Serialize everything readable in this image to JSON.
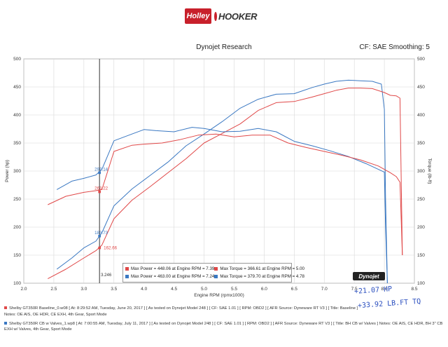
{
  "header": {
    "logo_holley": "Holley",
    "logo_hooker": "HOOKER",
    "title": "Dynojet Research",
    "cf_label": "CF: SAE Smoothing: 5"
  },
  "colors": {
    "red": "#e04848",
    "blue": "#3a78c2",
    "annotation": "#2b4fbf"
  },
  "chart_data": {
    "type": "line",
    "xlabel": "Engine RPM (rpmx1000)",
    "ylabel_left": "Power (hp)",
    "ylabel_right": "Torque (lb-ft)",
    "xlim": [
      2.0,
      8.5
    ],
    "ylim": [
      100,
      500
    ],
    "xticks": [
      "2.0",
      "2.5",
      "3.0",
      "3.5",
      "4.0",
      "4.5",
      "5.0",
      "5.5",
      "6.0",
      "6.5",
      "7.0",
      "7.5",
      "8.0",
      "8.5"
    ],
    "yticks_left": [
      "100",
      "150",
      "200",
      "250",
      "300",
      "350",
      "400",
      "450",
      "500"
    ],
    "yticks_right": [
      "100",
      "150",
      "200",
      "250",
      "300",
      "350",
      "400",
      "450",
      "500"
    ],
    "grid": true,
    "cursor_rpm": 3.26,
    "cursor_label": "3.246",
    "point_labels": [
      {
        "text": "297.14",
        "x": 3.26,
        "y": 297,
        "color": "blue"
      },
      {
        "text": "263.22",
        "x": 3.26,
        "y": 263,
        "color": "red"
      },
      {
        "text": "183.73",
        "x": 3.26,
        "y": 184,
        "color": "blue"
      },
      {
        "text": "162.66",
        "x": 3.26,
        "y": 163,
        "color": "red"
      }
    ],
    "series": [
      {
        "color": "blue",
        "kind": "power",
        "x": [
          2.55,
          2.8,
          3.0,
          3.2,
          3.3,
          3.5,
          3.8,
          4.1,
          4.4,
          4.7,
          5.0,
          5.3,
          5.6,
          5.9,
          6.2,
          6.5,
          6.8,
          7.0,
          7.2,
          7.4,
          7.6,
          7.8,
          7.95,
          8.0,
          8.02,
          8.05
        ],
        "y": [
          125,
          145,
          163,
          175,
          190,
          238,
          268,
          292,
          316,
          345,
          366,
          388,
          412,
          428,
          437,
          438,
          449,
          455,
          460,
          462,
          461,
          460,
          455,
          410,
          250,
          100
        ]
      },
      {
        "color": "red",
        "kind": "power",
        "x": [
          2.4,
          2.7,
          3.0,
          3.2,
          3.3,
          3.5,
          3.8,
          4.1,
          4.4,
          4.7,
          5.0,
          5.3,
          5.6,
          5.9,
          6.2,
          6.5,
          6.8,
          7.0,
          7.2,
          7.4,
          7.6,
          7.8,
          8.0,
          8.1,
          8.2,
          8.26,
          8.3
        ],
        "y": [
          108,
          125,
          145,
          158,
          168,
          215,
          248,
          272,
          297,
          322,
          350,
          367,
          384,
          408,
          422,
          424,
          432,
          438,
          444,
          448,
          448,
          447,
          440,
          435,
          434,
          430,
          150
        ]
      },
      {
        "color": "blue",
        "kind": "torque",
        "x": [
          2.55,
          2.8,
          3.0,
          3.2,
          3.3,
          3.5,
          3.8,
          4.0,
          4.2,
          4.5,
          4.8,
          5.0,
          5.3,
          5.6,
          5.9,
          6.2,
          6.5,
          6.8,
          7.1,
          7.4,
          7.7,
          7.9,
          8.0,
          8.02,
          8.05
        ],
        "y": [
          267,
          282,
          287,
          293,
          303,
          354,
          366,
          374,
          372,
          370,
          378,
          376,
          370,
          371,
          376,
          370,
          353,
          345,
          336,
          326,
          313,
          303,
          298,
          200,
          100
        ]
      },
      {
        "color": "red",
        "kind": "torque",
        "x": [
          2.4,
          2.7,
          3.0,
          3.2,
          3.3,
          3.5,
          3.8,
          4.0,
          4.3,
          4.6,
          4.9,
          5.2,
          5.5,
          5.8,
          6.1,
          6.4,
          6.7,
          7.0,
          7.3,
          7.6,
          7.9,
          8.1,
          8.2,
          8.26,
          8.3
        ],
        "y": [
          240,
          255,
          262,
          265,
          267,
          335,
          346,
          348,
          350,
          356,
          364,
          366,
          361,
          364,
          364,
          350,
          342,
          335,
          328,
          320,
          309,
          297,
          290,
          280,
          150
        ]
      }
    ],
    "legend": [
      {
        "color": "red",
        "power": "Max Power = 448.06 at Engine RPM = 7.39",
        "torque": "Max Torque = 366.61 at Engine RPM = 5.00"
      },
      {
        "color": "blue",
        "power": "Max Power = 463.00 at Engine RPM = 7.24",
        "torque": "Max Torque = 379.70 at Engine RPM = 4.78"
      }
    ]
  },
  "dynojet_logo": "Dynojet",
  "annotations": {
    "hp": "+21.07 HP",
    "tq": "+33.92 LB.FT TQ"
  },
  "footer": {
    "run1_line1": "Shelby GT350R Baseline_0.w08  [ At: 8:29:52 AM, Tuesday, June 20, 2017 ]  [ As tested on Dynojet Model 248 ]  [ CF: SAE 1.01 ]  [ RPM: OBD2 ]  [ AFR Source: Dyneware RT V3 ]  [ Title: Baseline ]",
    "run1_line2": "Notes: OE AIS, OE HDR, CE EXH, 4th Gear, Sport Mode",
    "run2_line1": "Shelby GT350R CB w Valves_1.wp8  [ At: 7:00:55 AM, Tuesday, July 11, 2017 ]  [ As tested on Dynojet Model 248 ]  [ CF: SAE 1.01 ]  [ RPM: OBD2 ]  [ AFR Source: Dyneware RT V3 ]  [ Title: BH CB w/ Valves ]  Notes: OE AIS, CE HDR, BH 3\" CB EXH w/ Valves, 4th Gear, Sport Mode"
  }
}
